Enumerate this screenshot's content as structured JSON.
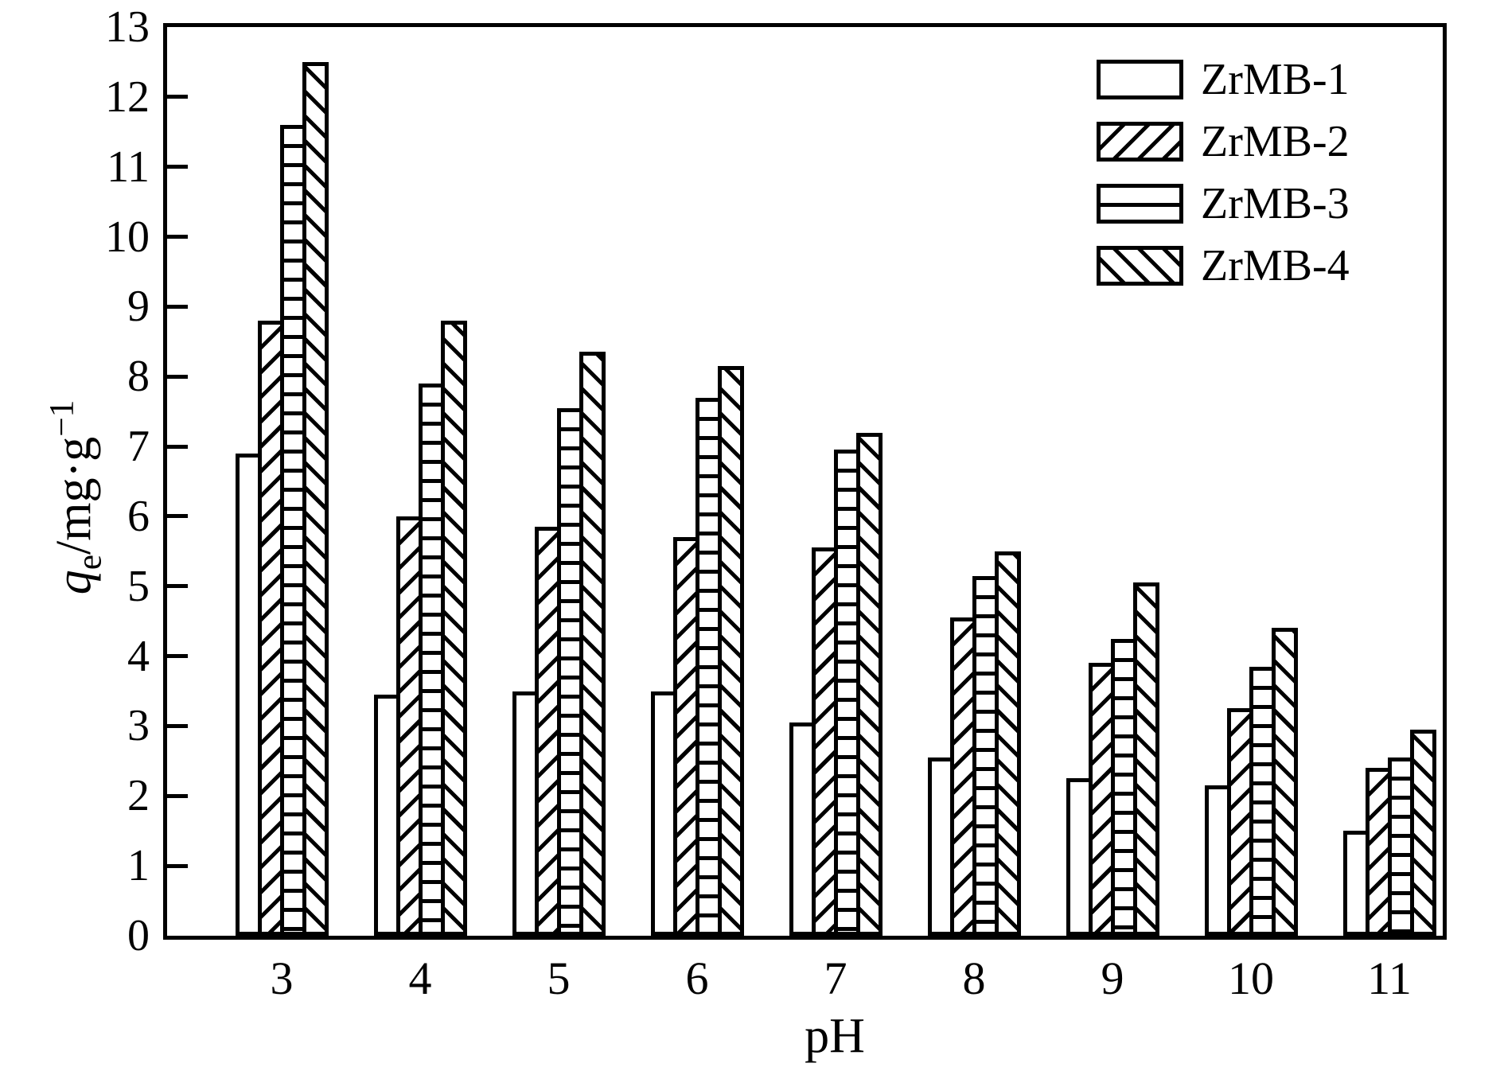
{
  "chart_data": {
    "type": "bar",
    "title": "",
    "xlabel": "pH",
    "ylabel": "qe/mg·g−1",
    "ylabel_parts": {
      "symbol": "q",
      "subscript": "e",
      "unit": "/mg·g",
      "superscript": "−1"
    },
    "categories": [
      "3",
      "4",
      "5",
      "6",
      "7",
      "8",
      "9",
      "10",
      "11"
    ],
    "series": [
      {
        "name": "ZrMB-1",
        "pattern": "plain",
        "values": [
          6.9,
          3.45,
          3.5,
          3.5,
          3.05,
          2.55,
          2.25,
          2.15,
          1.5
        ]
      },
      {
        "name": "ZrMB-2",
        "pattern": "diag-forward",
        "values": [
          8.8,
          6.0,
          5.85,
          5.7,
          5.55,
          4.55,
          3.9,
          3.25,
          2.4
        ]
      },
      {
        "name": "ZrMB-3",
        "pattern": "horizontal",
        "values": [
          11.6,
          7.9,
          7.55,
          7.7,
          6.95,
          5.15,
          4.25,
          3.85,
          2.55
        ]
      },
      {
        "name": "ZrMB-4",
        "pattern": "diag-back",
        "values": [
          12.5,
          8.8,
          8.35,
          8.15,
          7.2,
          5.5,
          5.05,
          4.4,
          2.95
        ]
      }
    ],
    "ylim": [
      0,
      13
    ],
    "ytick_step": 1,
    "ytick_labels": [
      "0",
      "1",
      "2",
      "3",
      "4",
      "5",
      "6",
      "7",
      "8",
      "9",
      "10",
      "11",
      "12",
      "13"
    ],
    "legend_position": "top-right",
    "grid": false,
    "colors": {
      "foreground": "#000000",
      "background": "#ffffff"
    }
  }
}
